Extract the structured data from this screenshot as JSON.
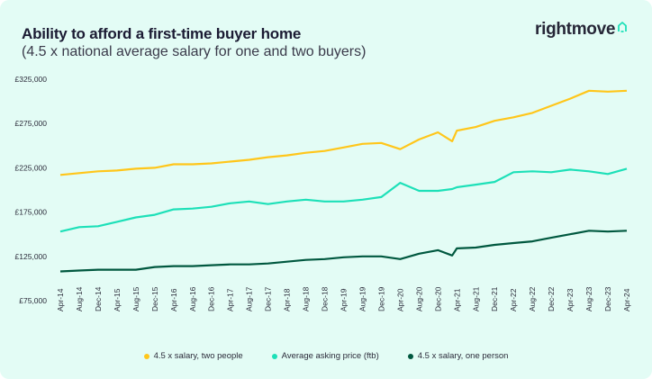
{
  "header": {
    "title": "Ability to afford a first-time buyer home",
    "subtitle": "(4.5 x national average salary for one and two buyers)",
    "logo_text": "rightmove"
  },
  "colors": {
    "background": "#e3fcf5",
    "two_people": "#ffc61a",
    "asking_price": "#1de0b8",
    "one_person": "#00583f"
  },
  "chart_data": {
    "type": "line",
    "title": "Ability to afford a first-time buyer home",
    "subtitle": "(4.5 x national average salary for one and two buyers)",
    "xlabel": "",
    "ylabel": "",
    "ylim": [
      75000,
      325000
    ],
    "y_ticks": [
      "£325,000",
      "£275,000",
      "£225,000",
      "£175,000",
      "£125,000",
      "£75,000"
    ],
    "y_tick_values": [
      325000,
      275000,
      225000,
      175000,
      125000,
      75000
    ],
    "x_ticks": [
      "Apr-14",
      "Aug-14",
      "Dec-14",
      "Apr-15",
      "Aug-15",
      "Dec-15",
      "Apr-16",
      "Aug-16",
      "Dec-16",
      "Apr-17",
      "Aug-17",
      "Dec-17",
      "Apr-18",
      "Aug-18",
      "Dec-18",
      "Apr-19",
      "Aug-19",
      "Dec-19",
      "Apr-20",
      "Aug-20",
      "Dec-20",
      "Apr-21",
      "Aug-21",
      "Dec-21",
      "Apr-22",
      "Aug-22",
      "Dec-22",
      "Apr-23",
      "Aug-23",
      "Dec-23",
      "Apr-24"
    ],
    "grid": false,
    "legend": "bottom",
    "x": [
      "2014-04",
      "2014-08",
      "2014-12",
      "2015-04",
      "2015-08",
      "2015-12",
      "2016-04",
      "2016-08",
      "2016-12",
      "2017-04",
      "2017-08",
      "2017-12",
      "2018-04",
      "2018-08",
      "2018-12",
      "2019-04",
      "2019-08",
      "2019-12",
      "2020-04",
      "2020-08",
      "2020-12",
      "2021-03",
      "2021-04",
      "2021-08",
      "2021-12",
      "2022-04",
      "2022-08",
      "2022-12",
      "2023-04",
      "2023-08",
      "2023-12",
      "2024-04"
    ],
    "series": [
      {
        "name": "4.5 x salary, two people",
        "color": "#ffc61a",
        "values": [
          217000,
          219000,
          221000,
          222000,
          224000,
          225000,
          229000,
          229000,
          230000,
          232000,
          234000,
          237000,
          239000,
          242000,
          244000,
          248000,
          252000,
          253000,
          246000,
          257000,
          265000,
          255000,
          267000,
          271000,
          278000,
          282000,
          287000,
          295000,
          303000,
          312000,
          311000,
          312000
        ]
      },
      {
        "name": "Average asking price (ftb)",
        "color": "#1de0b8",
        "values": [
          153000,
          158000,
          159000,
          164000,
          169000,
          172000,
          178000,
          179000,
          181000,
          185000,
          187000,
          184000,
          187000,
          189000,
          187000,
          187000,
          189000,
          192000,
          208000,
          199000,
          199000,
          201000,
          203000,
          206000,
          209000,
          220000,
          221000,
          220000,
          223000,
          221000,
          218000,
          224000
        ]
      },
      {
        "name": "4.5 x salary, one person",
        "color": "#00583f",
        "values": [
          108000,
          109000,
          110000,
          110000,
          110000,
          113000,
          114000,
          114000,
          115000,
          116000,
          116000,
          117000,
          119000,
          121000,
          122000,
          124000,
          125000,
          125000,
          122000,
          128000,
          132000,
          126000,
          134000,
          135000,
          138000,
          140000,
          142000,
          146000,
          150000,
          154000,
          153000,
          154000
        ]
      }
    ]
  }
}
